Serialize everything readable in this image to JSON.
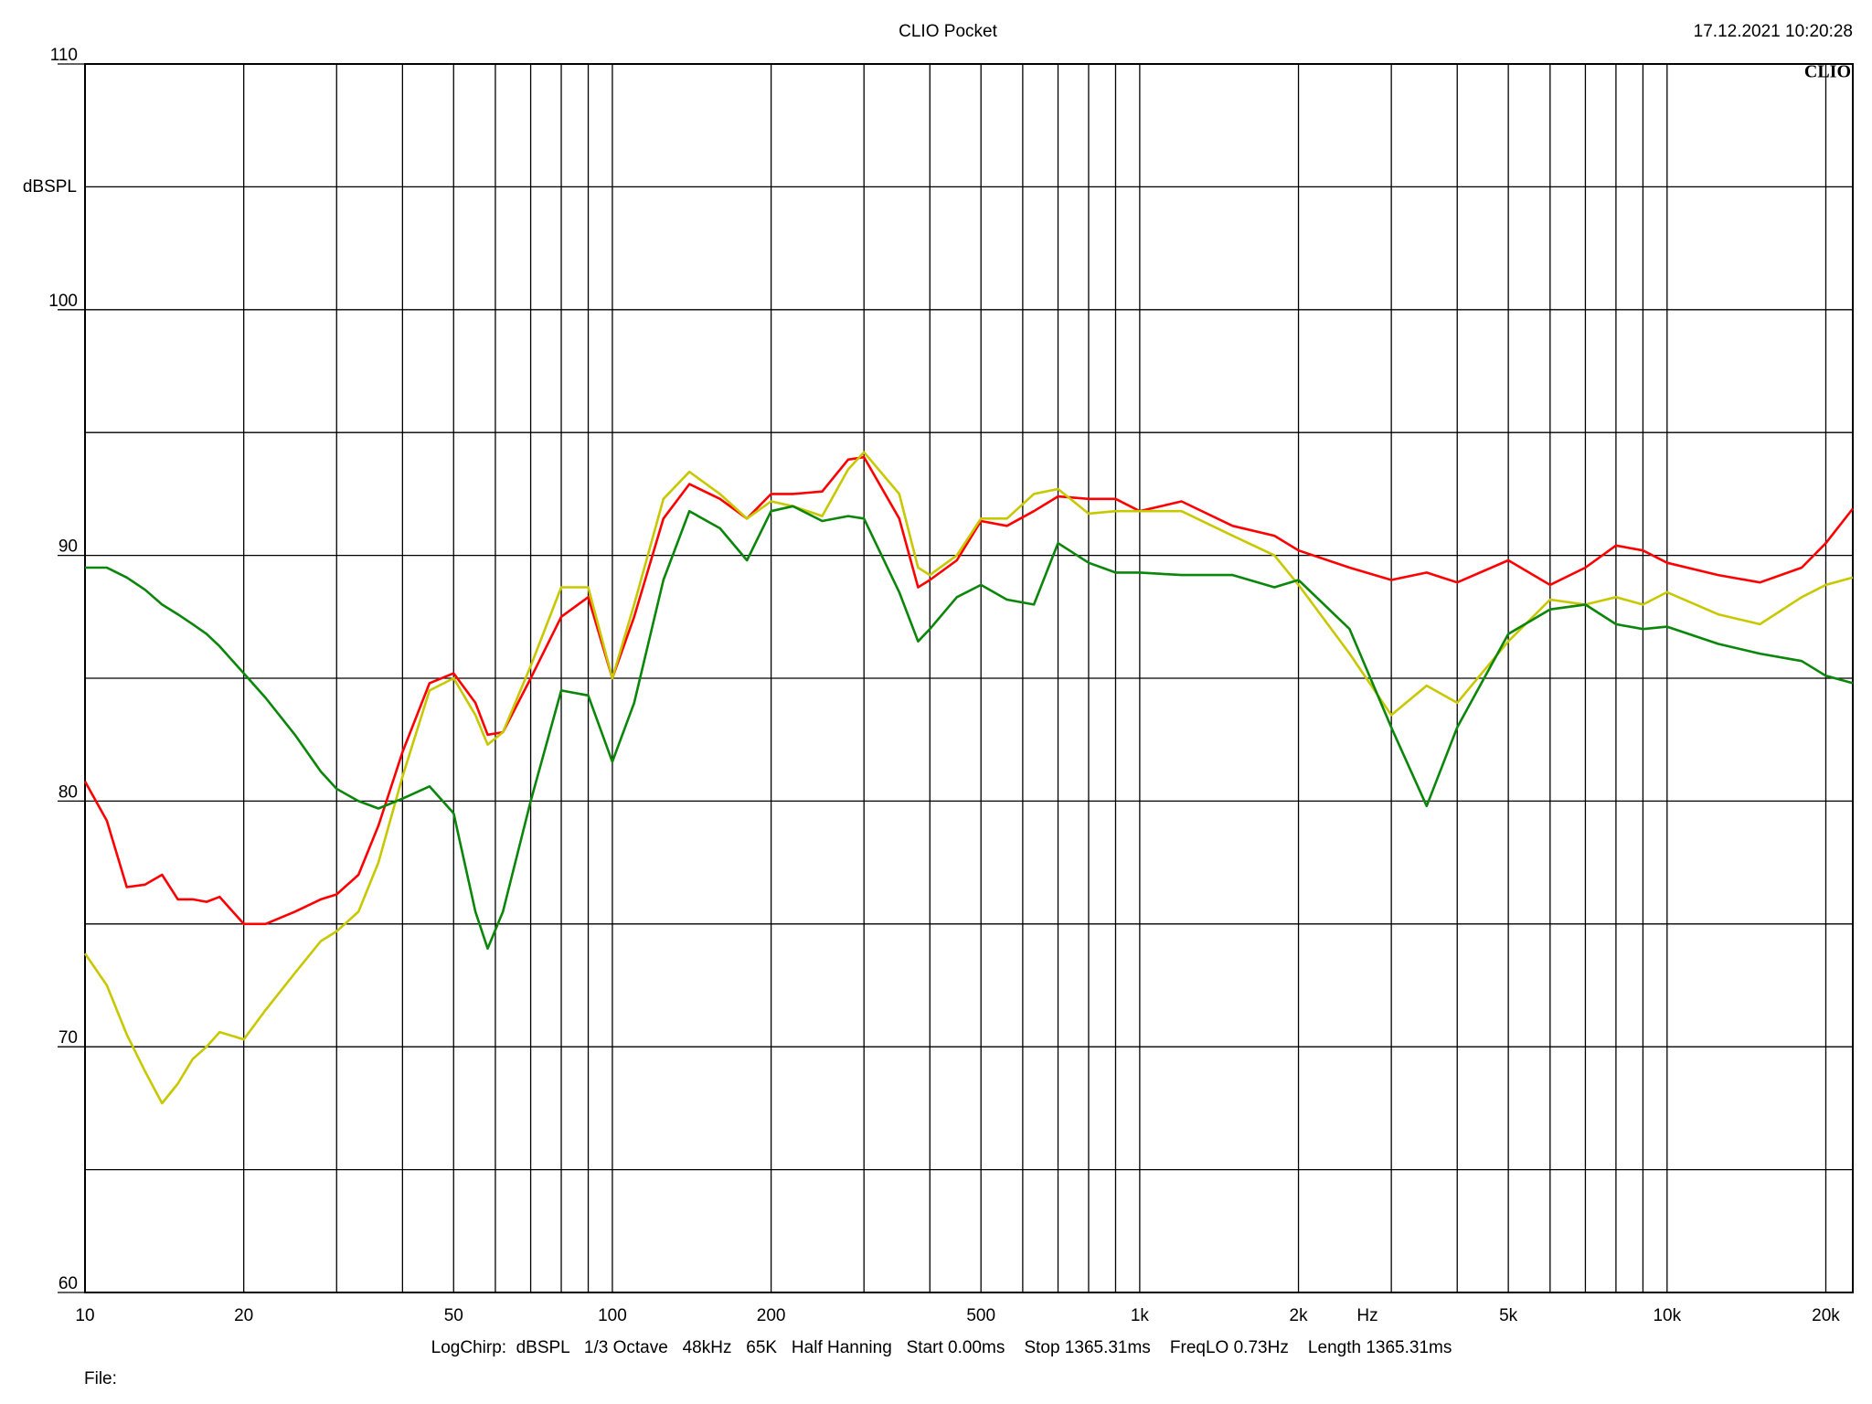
{
  "chart_data": {
    "type": "line",
    "title": "CLIO Pocket",
    "timestamp": "17.12.2021 10:20:28",
    "logo": "CLIO",
    "y_label": "dBSPL",
    "x_label": "Hz",
    "settings": "LogChirp:  dBSPL   1/3 Octave   48kHz   65K   Half Hanning   Start 0.00ms    Stop 1365.31ms    FreqLO 0.73Hz    Length 1365.31ms",
    "file_label": "File:",
    "x_scale": "log",
    "grid": true,
    "xlim": [
      10,
      22500
    ],
    "ylim": [
      60,
      110
    ],
    "xticks": [
      10,
      20,
      50,
      100,
      200,
      500,
      {
        "value": 1000,
        "label": "1k"
      },
      {
        "value": 2000,
        "label": "2k"
      },
      {
        "value": 5000,
        "label": "5k"
      },
      {
        "value": 10000,
        "label": "10k"
      },
      {
        "value": 20000,
        "label": "20k"
      }
    ],
    "xminor": [
      30,
      40,
      60,
      70,
      80,
      90,
      300,
      400,
      600,
      700,
      800,
      900,
      3000,
      4000,
      6000,
      7000,
      8000,
      9000
    ],
    "yticks": [
      60,
      70,
      80,
      90,
      100,
      110
    ],
    "yminor": [
      65,
      75,
      85,
      95,
      105
    ],
    "x": [
      10,
      11,
      12,
      13,
      14,
      15,
      16,
      17,
      18,
      20,
      22,
      25,
      28,
      30,
      33,
      36,
      40,
      45,
      50,
      55,
      58,
      62,
      70,
      80,
      90,
      100,
      110,
      125,
      140,
      160,
      180,
      200,
      220,
      250,
      280,
      300,
      350,
      380,
      400,
      450,
      500,
      560,
      630,
      700,
      800,
      900,
      1000,
      1200,
      1500,
      1800,
      2000,
      2500,
      3000,
      3500,
      4000,
      5000,
      6000,
      7000,
      8000,
      9000,
      10000,
      12500,
      15000,
      18000,
      20000,
      22500
    ],
    "series": [
      {
        "name": "red",
        "color": "#ff0000",
        "values": [
          80.8,
          79.2,
          76.5,
          76.6,
          77,
          76,
          76,
          75.9,
          76.1,
          75,
          75,
          75.5,
          76,
          76.2,
          77,
          79,
          82,
          84.8,
          85.2,
          84,
          82.7,
          82.8,
          85,
          87.5,
          88.3,
          85,
          87.5,
          91.5,
          92.9,
          92.3,
          91.5,
          92.5,
          92.5,
          92.6,
          93.9,
          94,
          91.5,
          88.7,
          89,
          89.8,
          91.4,
          91.2,
          91.8,
          92.4,
          92.3,
          92.3,
          91.8,
          92.2,
          91.2,
          90.8,
          90.2,
          89.5,
          89,
          89.3,
          88.9,
          89.8,
          88.8,
          89.5,
          90.4,
          90.2,
          89.7,
          89.2,
          88.9,
          89.5,
          90.5,
          91.9
        ]
      },
      {
        "name": "yellow",
        "color": "#c8c800",
        "values": [
          73.8,
          72.5,
          70.5,
          69,
          67.7,
          68.5,
          69.5,
          70,
          70.6,
          70.3,
          71.5,
          73,
          74.3,
          74.7,
          75.5,
          77.5,
          81,
          84.5,
          85,
          83.5,
          82.3,
          82.8,
          85.5,
          88.7,
          88.7,
          85,
          88,
          92.3,
          93.4,
          92.5,
          91.5,
          92.2,
          92,
          91.6,
          93.5,
          94.2,
          92.5,
          89.5,
          89.2,
          90,
          91.5,
          91.5,
          92.5,
          92.7,
          91.7,
          91.8,
          91.8,
          91.8,
          90.8,
          90,
          88.8,
          86,
          83.5,
          84.7,
          84,
          86.5,
          88.2,
          88,
          88.3,
          88,
          88.5,
          87.6,
          87.2,
          88.3,
          88.8,
          89.1
        ]
      },
      {
        "name": "green",
        "color": "#0a860a",
        "values": [
          89.5,
          89.5,
          89.1,
          88.6,
          88,
          87.6,
          87.2,
          86.8,
          86.3,
          85.2,
          84.2,
          82.7,
          81.2,
          80.5,
          80,
          79.7,
          80.1,
          80.6,
          79.5,
          75.5,
          74,
          75.5,
          80,
          84.5,
          84.3,
          81.6,
          84,
          89,
          91.8,
          91.1,
          89.8,
          91.8,
          92,
          91.4,
          91.6,
          91.5,
          88.5,
          86.5,
          87,
          88.3,
          88.8,
          88.2,
          88,
          90.5,
          89.7,
          89.3,
          89.3,
          89.2,
          89.2,
          88.7,
          89,
          87,
          83,
          79.8,
          83,
          86.8,
          87.8,
          88,
          87.2,
          87,
          87.1,
          86.4,
          86,
          85.7,
          85.1,
          84.8
        ]
      }
    ]
  }
}
